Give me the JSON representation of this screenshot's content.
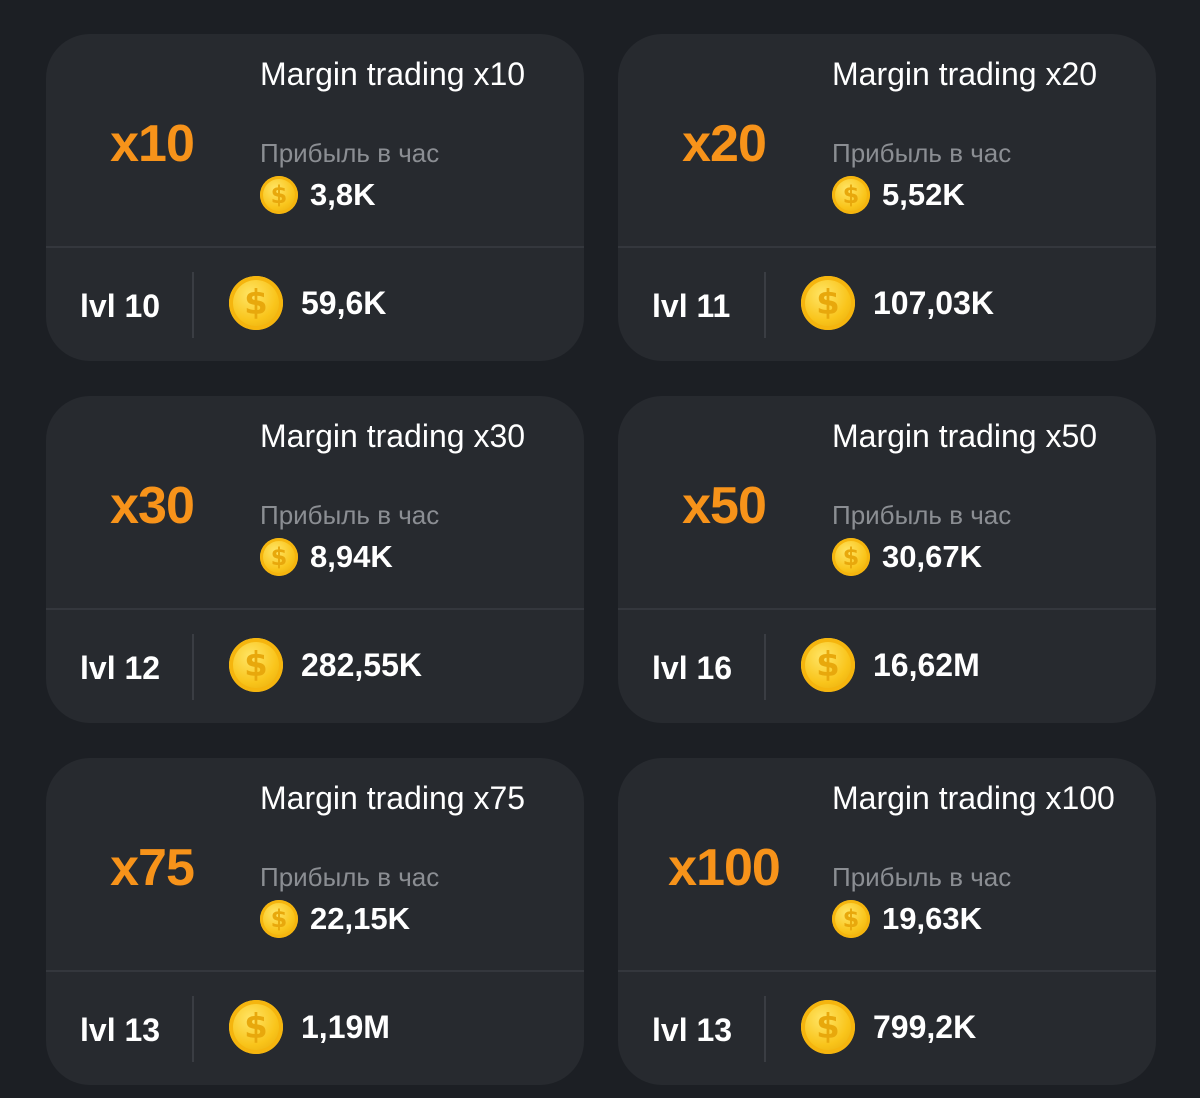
{
  "cards": [
    {
      "multiplier": "x10",
      "title": "Margin trading x10",
      "profit_label": "Прибыль в час",
      "profit_value": "3,8K",
      "level": "lvl 10",
      "cost": "59,6K",
      "coin_symbol": "$"
    },
    {
      "multiplier": "x20",
      "title": "Margin trading x20",
      "profit_label": "Прибыль в час",
      "profit_value": "5,52K",
      "level": "lvl 11",
      "cost": "107,03K",
      "coin_symbol": "$"
    },
    {
      "multiplier": "x30",
      "title": "Margin trading x30",
      "profit_label": "Прибыль в час",
      "profit_value": "8,94K",
      "level": "lvl 12",
      "cost": "282,55K",
      "coin_symbol": "$"
    },
    {
      "multiplier": "x50",
      "title": "Margin trading x50",
      "profit_label": "Прибыль в час",
      "profit_value": "30,67K",
      "level": "lvl 16",
      "cost": "16,62M",
      "coin_symbol": "$"
    },
    {
      "multiplier": "x75",
      "title": "Margin trading x75",
      "profit_label": "Прибыль в час",
      "profit_value": "22,15K",
      "level": "lvl 13",
      "cost": "1,19M",
      "coin_symbol": "$"
    },
    {
      "multiplier": "x100",
      "title": "Margin trading x100",
      "profit_label": "Прибыль в час",
      "profit_value": "19,63K",
      "level": "lvl 13",
      "cost": "799,2K",
      "coin_symbol": "$"
    }
  ],
  "colors": {
    "accent": "#f7931a",
    "card_bg": "#272a2f",
    "page_bg": "#1c1f24",
    "muted_text": "#8b8e93",
    "coin": "#f9c41a"
  },
  "icons": {
    "coin": "coin-icon"
  }
}
